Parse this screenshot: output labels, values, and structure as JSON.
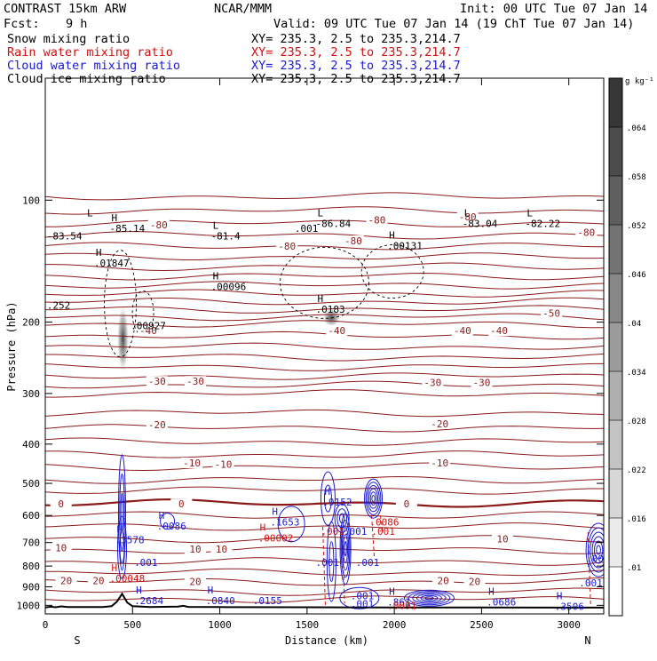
{
  "header": {
    "model": "CONTRAST 15km ARW",
    "org": "NCAR/MMM",
    "init": "Init: 00 UTC Tue 07 Jan 14",
    "fcst_label": "Fcst:",
    "fcst_value": "9 h",
    "valid": "Valid: 09 UTC Tue 07 Jan 14 (19 ChT Tue 07 Jan 14)"
  },
  "fields": [
    {
      "name": "Snow mixing ratio",
      "xy": "XY= 235.3,  2.5 to 235.3,214.7",
      "color": "#000000"
    },
    {
      "name": "Rain water mixing ratio",
      "xy": "XY= 235.3,  2.5 to 235.3,214.7",
      "color": "#d01010"
    },
    {
      "name": "Cloud water mixing ratio",
      "xy": "XY= 235.3,  2.5 to 235.3,214.7",
      "color": "#1a1ad0"
    },
    {
      "name": "Cloud ice mixing ratio",
      "xy": "XY= 235.3,  2.5 to 235.3,214.7",
      "color": "#000000"
    }
  ],
  "colorbar": {
    "unit": "g kg⁻¹",
    "ticks": [
      ".01",
      ".016",
      ".022",
      ".028",
      ".034",
      ".04",
      ".046",
      ".052",
      ".058",
      ".064"
    ]
  },
  "chart_data": {
    "type": "cross-section contour",
    "xlabel": "Distance (km)",
    "ylabel": "Pressure (hPa)",
    "xlim": [
      0,
      3200
    ],
    "ylim": [
      1050,
      50
    ],
    "y_scale": "log",
    "x_ticks": [
      "0",
      "500",
      "1000",
      "1500",
      "2000",
      "2500",
      "3000"
    ],
    "y_ticks": [
      "100",
      "200",
      "300",
      "400",
      "500",
      "600",
      "700",
      "800",
      "900",
      "1000"
    ],
    "x_end_labels": [
      "S",
      "N"
    ],
    "temperature_labels": [
      {
        "x": 650,
        "p": 115,
        "t": "-80"
      },
      {
        "x": 1900,
        "p": 112,
        "t": "-80"
      },
      {
        "x": 3100,
        "p": 120,
        "t": "-80"
      },
      {
        "x": 1385,
        "p": 130,
        "t": "-80"
      },
      {
        "x": 1765,
        "p": 126,
        "t": "-80"
      },
      {
        "x": 2420,
        "p": 110,
        "t": "-80"
      },
      {
        "x": 2900,
        "p": 190,
        "t": "-50"
      },
      {
        "x": 590,
        "p": 210,
        "t": "-40"
      },
      {
        "x": 1670,
        "p": 210,
        "t": "-40"
      },
      {
        "x": 2390,
        "p": 210,
        "t": "-40"
      },
      {
        "x": 2600,
        "p": 210,
        "t": "-40"
      },
      {
        "x": 640,
        "p": 280,
        "t": "-30"
      },
      {
        "x": 860,
        "p": 280,
        "t": "-30"
      },
      {
        "x": 2220,
        "p": 282,
        "t": "-30"
      },
      {
        "x": 2500,
        "p": 282,
        "t": "-30"
      },
      {
        "x": 640,
        "p": 358,
        "t": "-20"
      },
      {
        "x": 2260,
        "p": 356,
        "t": "-20"
      },
      {
        "x": 840,
        "p": 445,
        "t": "-10"
      },
      {
        "x": 1020,
        "p": 448,
        "t": "-10"
      },
      {
        "x": 2260,
        "p": 445,
        "t": "-10"
      },
      {
        "x": 90,
        "p": 562,
        "t": "0"
      },
      {
        "x": 780,
        "p": 562,
        "t": "0"
      },
      {
        "x": 2070,
        "p": 562,
        "t": "0"
      },
      {
        "x": 2620,
        "p": 685,
        "t": "10"
      },
      {
        "x": 90,
        "p": 720,
        "t": "10"
      },
      {
        "x": 860,
        "p": 726,
        "t": "10"
      },
      {
        "x": 1010,
        "p": 726,
        "t": "10"
      },
      {
        "x": 120,
        "p": 868,
        "t": "20"
      },
      {
        "x": 305,
        "p": 868,
        "t": "20"
      },
      {
        "x": 860,
        "p": 873,
        "t": "20"
      },
      {
        "x": 2280,
        "p": 868,
        "t": "20"
      },
      {
        "x": 2460,
        "p": 873,
        "t": "20"
      }
    ],
    "extrema_labels": [
      {
        "x": 420,
        "p": 115,
        "k": "H",
        "v": "-85.14",
        "c": "#000000"
      },
      {
        "x": 60,
        "p": 120,
        "k": "",
        "v": "-83.54",
        "c": "#000000"
      },
      {
        "x": 280,
        "p": 112,
        "k": "L",
        "v": "",
        "c": "#000000"
      },
      {
        "x": 330,
        "p": 140,
        "k": "H",
        "v": ".01847",
        "c": "#000000"
      },
      {
        "x": 60,
        "p": 178,
        "k": "",
        "v": ".252",
        "c": "#000000"
      },
      {
        "x": 1000,
        "p": 120,
        "k": "L",
        "v": "-81.4",
        "c": "#000000"
      },
      {
        "x": 1000,
        "p": 160,
        "k": "H",
        "v": ".00096",
        "c": "#000000"
      },
      {
        "x": 1600,
        "p": 112,
        "k": "L",
        "v": "-86.84",
        "c": "#000000"
      },
      {
        "x": 1480,
        "p": 115,
        "k": "",
        "v": ".001",
        "c": "#000000"
      },
      {
        "x": 2010,
        "p": 127,
        "k": "H",
        "v": ".00131",
        "c": "#000000"
      },
      {
        "x": 2440,
        "p": 112,
        "k": "L",
        "v": "-83.04",
        "c": "#000000"
      },
      {
        "x": 2800,
        "p": 112,
        "k": "L",
        "v": "-82.22",
        "c": "#000000"
      },
      {
        "x": 540,
        "p": 200,
        "k": "",
        "v": ".00927",
        "c": "#000000"
      },
      {
        "x": 1600,
        "p": 182,
        "k": "H",
        "v": ".0183",
        "c": "#000000"
      },
      {
        "x": 1640,
        "p": 545,
        "k": "H",
        "v": ".9152",
        "c": "#1a1ad0"
      },
      {
        "x": 1910,
        "p": 610,
        "k": "",
        "v": ".0086",
        "c": "#d01010"
      },
      {
        "x": 1630,
        "p": 643,
        "k": "",
        "v": ".001",
        "c": "#d01010"
      },
      {
        "x": 1760,
        "p": 643,
        "k": "",
        "v": ".001",
        "c": "#1a1ad0"
      },
      {
        "x": 1920,
        "p": 643,
        "k": "",
        "v": ".001",
        "c": "#d01010"
      },
      {
        "x": 690,
        "p": 625,
        "k": "H",
        "v": ".0086",
        "c": "#1a1ad0"
      },
      {
        "x": 1340,
        "p": 610,
        "k": "H",
        "v": ".1653",
        "c": "#1a1ad0"
      },
      {
        "x": 1270,
        "p": 668,
        "k": "H",
        "v": ".00002",
        "c": "#d01010"
      },
      {
        "x": 450,
        "p": 675,
        "k": "H",
        "v": ".3578",
        "c": "#1a1ad0"
      },
      {
        "x": 560,
        "p": 768,
        "k": "",
        "v": ".001",
        "c": "#1a1ad0"
      },
      {
        "x": 1600,
        "p": 768,
        "k": "",
        "v": ".001",
        "c": "#1a1ad0"
      },
      {
        "x": 1830,
        "p": 768,
        "k": "",
        "v": ".001",
        "c": "#1a1ad0"
      },
      {
        "x": 3150,
        "p": 750,
        "k": "",
        "v": ".001",
        "c": "#1a1ad0"
      },
      {
        "x": 3110,
        "p": 862,
        "k": "",
        "v": ".001",
        "c": "#1a1ad0"
      },
      {
        "x": 420,
        "p": 840,
        "k": "H",
        "v": ".00048",
        "c": "#d01010"
      },
      {
        "x": 560,
        "p": 955,
        "k": "H",
        "v": ".2684",
        "c": "#1a1ad0"
      },
      {
        "x": 970,
        "p": 955,
        "k": "H",
        "v": ".0840",
        "c": "#1a1ad0"
      },
      {
        "x": 1240,
        "p": 955,
        "k": "",
        "v": ".0155",
        "c": "#1a1ad0"
      },
      {
        "x": 1800,
        "p": 928,
        "k": "",
        "v": ".001",
        "c": "#1a1ad0"
      },
      {
        "x": 1800,
        "p": 970,
        "k": "",
        "v": ".001",
        "c": "#1a1ad0"
      },
      {
        "x": 2010,
        "p": 962,
        "k": "H",
        "v": ".861",
        "c": "#1a1ad0"
      },
      {
        "x": 2010,
        "p": 982,
        "k": "",
        "v": ".0091",
        "c": "#d01010"
      },
      {
        "x": 2580,
        "p": 962,
        "k": "H",
        "v": ".0686",
        "c": "#1a1ad0"
      },
      {
        "x": 2970,
        "p": 985,
        "k": "H",
        "v": ".3506",
        "c": "#1a1ad0"
      }
    ],
    "cloud_ice_shading": [
      {
        "x": 445,
        "p": 220,
        "w": 40,
        "h": 80,
        "max": 0.07
      },
      {
        "x": 1640,
        "p": 195,
        "w": 60,
        "h": 22,
        "max": 0.03
      }
    ]
  }
}
